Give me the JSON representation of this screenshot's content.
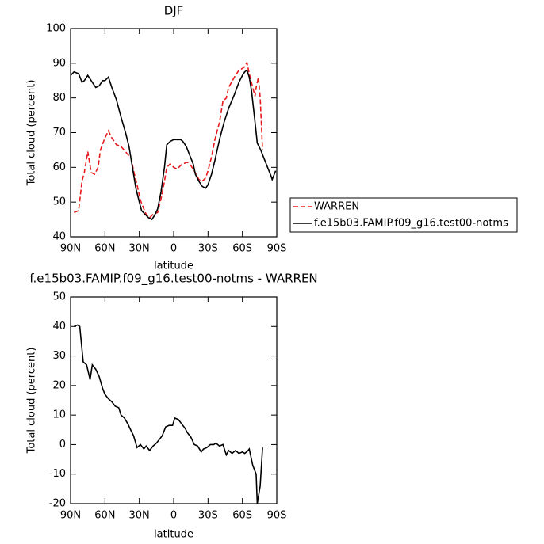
{
  "chart_data": [
    {
      "type": "line",
      "title": "DJF",
      "x_label": "latitude",
      "y_label": "Total cloud (percent)",
      "xlim": [
        90,
        -90
      ],
      "ylim": [
        40,
        100
      ],
      "xticks": [
        {
          "value": 90,
          "label": "90N"
        },
        {
          "value": 60,
          "label": "60N"
        },
        {
          "value": 30,
          "label": "30N"
        },
        0,
        {
          "value": -30,
          "label": "30S"
        },
        {
          "value": -60,
          "label": "60S"
        },
        {
          "value": -90,
          "label": "90S"
        }
      ],
      "yticks": [
        40,
        50,
        60,
        70,
        80,
        90,
        100
      ],
      "legend": "right",
      "series": [
        {
          "name": "WARREN",
          "color": "#e8191c",
          "dash": true,
          "x": [
            87,
            83,
            80,
            78,
            75,
            72,
            69,
            66,
            64,
            60,
            57,
            54,
            50,
            46,
            42,
            37,
            35,
            32,
            29,
            26,
            24,
            21,
            18,
            14,
            11,
            8,
            6,
            3,
            0,
            -3,
            -6,
            -8,
            -12,
            -15,
            -18,
            -22,
            -25,
            -28,
            -30,
            -33,
            -36,
            -40,
            -43,
            -46,
            -48,
            -53,
            -57,
            -60,
            -62,
            -64,
            -66,
            -69,
            -71,
            -72,
            -74,
            -75.5,
            -77.6
          ],
          "values": [
            47,
            47.5,
            56,
            58.5,
            64.5,
            58.5,
            58,
            60,
            65,
            68.5,
            70.5,
            68.5,
            66.5,
            66,
            64.5,
            62.5,
            59,
            55,
            50.5,
            48,
            46.5,
            45.5,
            46.5,
            47,
            51,
            56,
            60,
            61,
            60,
            59.5,
            60.5,
            61,
            61.5,
            60.5,
            59,
            56.5,
            56,
            57,
            59,
            63,
            68,
            73,
            79,
            80,
            83,
            86,
            88,
            88.5,
            89,
            90.2,
            87,
            83,
            80.5,
            83,
            86,
            80,
            65
          ]
        },
        {
          "name": "f.e15b03.FAMIP.f09_g16.test00-notms",
          "color": "#000000",
          "dash": false,
          "x": [
            90,
            87,
            83,
            80,
            78,
            75,
            71,
            68,
            65,
            62,
            60,
            57,
            54,
            50,
            46,
            42,
            39,
            36,
            33,
            30,
            28,
            25,
            22,
            19,
            17,
            14,
            11,
            8,
            6,
            3,
            0,
            -3,
            -6,
            -8,
            -11,
            -14,
            -17,
            -19,
            -22,
            -25,
            -28,
            -30,
            -33,
            -36,
            -40,
            -44,
            -48,
            -53,
            -57,
            -60,
            -62,
            -64,
            -66,
            -68,
            -71,
            -73,
            -76,
            -79,
            -82,
            -85,
            -86,
            -89
          ],
          "values": [
            86.5,
            87.5,
            87,
            84.5,
            85,
            86.5,
            84.5,
            83,
            83.5,
            85,
            85,
            86,
            83,
            79.5,
            74.5,
            70,
            66,
            60,
            54,
            50,
            47.5,
            46.5,
            45.5,
            45,
            46,
            48,
            53,
            60,
            66.5,
            67.5,
            68,
            68,
            68,
            67.5,
            66,
            63.5,
            61,
            58,
            56,
            54.5,
            54,
            55,
            58,
            62,
            68,
            73,
            77,
            81,
            84.5,
            86.5,
            87.5,
            88,
            86,
            82,
            73,
            67,
            65,
            62.5,
            60,
            57.5,
            56.5,
            59
          ]
        }
      ]
    },
    {
      "type": "line",
      "title": "f.e15b03.FAMIP.f09_g16.test00-notms - WARREN",
      "x_label": "latitude",
      "y_label": "Total cloud (percent)",
      "xlim": [
        90,
        -90
      ],
      "ylim": [
        -20,
        50
      ],
      "xticks": [
        {
          "value": 90,
          "label": "90N"
        },
        {
          "value": 60,
          "label": "60N"
        },
        {
          "value": 30,
          "label": "30N"
        },
        0,
        {
          "value": -30,
          "label": "30S"
        },
        {
          "value": -60,
          "label": "60S"
        },
        {
          "value": -90,
          "label": "90S"
        }
      ],
      "yticks": [
        -20,
        -10,
        0,
        10,
        20,
        30,
        40,
        50
      ],
      "series": [
        {
          "color": "#000000",
          "dash": false,
          "x": [
            87,
            84,
            82,
            79,
            76,
            73,
            71,
            68,
            65,
            62,
            60,
            57,
            54,
            51,
            48,
            46,
            43,
            40,
            37,
            35,
            32,
            29,
            26,
            24,
            21,
            18,
            15,
            12,
            10,
            7,
            4,
            1,
            -1,
            -4,
            -7,
            -10,
            -12,
            -15,
            -18,
            -21,
            -24,
            -26,
            -29,
            -32,
            -35,
            -37,
            -40,
            -43,
            -46,
            -48,
            -51,
            -54,
            -57,
            -60,
            -62,
            -65,
            -66,
            -69,
            -72,
            -73,
            -75.5,
            -77.6
          ],
          "values": [
            40,
            40.5,
            40,
            28,
            27,
            22,
            27,
            25.5,
            23,
            19,
            17,
            15.5,
            14.5,
            13,
            12.5,
            10,
            9,
            7,
            4.5,
            3,
            -1,
            0,
            -1.5,
            -0.5,
            -2,
            -0.5,
            0.5,
            2,
            3,
            6,
            6.5,
            6.5,
            9,
            8.5,
            7,
            5.5,
            4,
            2.5,
            0,
            -0.5,
            -2.5,
            -1.5,
            -1,
            0,
            0,
            0.5,
            -0.5,
            0,
            -3.5,
            -2,
            -3,
            -2,
            -3,
            -2.5,
            -3,
            -2,
            -1.5,
            -7,
            -10,
            -20,
            -14,
            -1
          ]
        }
      ]
    }
  ]
}
